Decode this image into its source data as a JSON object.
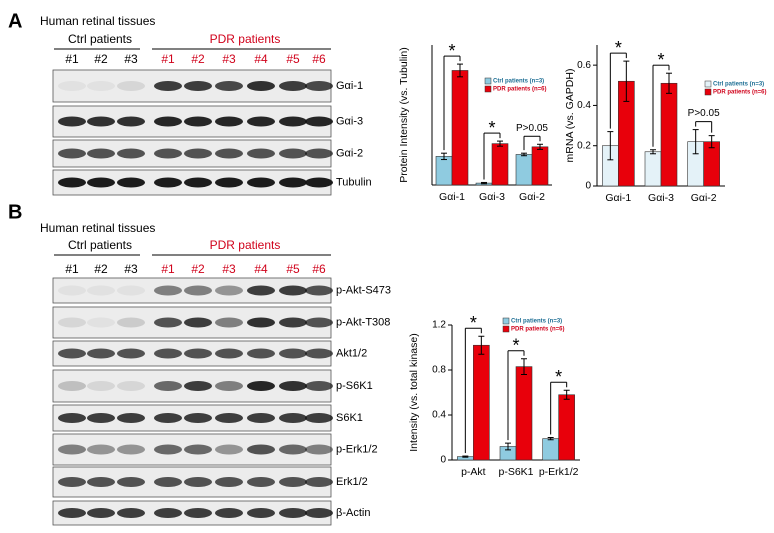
{
  "panel_a": {
    "label": "A",
    "tissue": "Human retinal tissues",
    "groups": [
      "Ctrl patients",
      "PDR patients"
    ],
    "lanes": [
      "#1",
      "#2",
      "#3",
      "#1",
      "#2",
      "#3",
      "#4",
      "#5",
      "#6"
    ],
    "blots": [
      "Gαi-1",
      "Gαi-3",
      "Gαi-2",
      "Tubulin"
    ]
  },
  "panel_b": {
    "label": "B",
    "tissue": "Human retinal tissues",
    "groups": [
      "Ctrl patients",
      "PDR patients"
    ],
    "lanes": [
      "#1",
      "#2",
      "#3",
      "#1",
      "#2",
      "#3",
      "#4",
      "#5",
      "#6"
    ],
    "blots": [
      "p-Akt-S473",
      "p-Akt-T308",
      "Akt1/2",
      "p-S6K1",
      "S6K1",
      "p-Erk1/2",
      "Erk1/2",
      "β-Actin"
    ]
  },
  "chart_data": [
    {
      "type": "bar",
      "ylabel": "Protein Intensity (vs. Tubulin)",
      "categories": [
        "Gαi-1",
        "Gαi-3",
        "Gαi-2"
      ],
      "series": [
        {
          "name": "Ctrl patients (n=3)",
          "color": "#8fcbe0",
          "values": [
            0.45,
            0.03,
            0.48
          ],
          "errors": [
            0.05,
            0.01,
            0.02
          ]
        },
        {
          "name": "PDR patients (n=6)",
          "color": "#e8000b",
          "values": [
            1.8,
            0.65,
            0.6
          ],
          "errors": [
            0.1,
            0.04,
            0.04
          ]
        }
      ],
      "ylim": [
        0,
        2.2
      ],
      "annotations": [
        "*",
        "*",
        "P>0.05"
      ]
    },
    {
      "type": "bar",
      "ylabel": "mRNA (vs. GAPDH)",
      "categories": [
        "Gαi-1",
        "Gαi-3",
        "Gαi-2"
      ],
      "series": [
        {
          "name": "Ctrl patients (n=3)",
          "color": "#e4f2f8",
          "values": [
            0.2,
            0.17,
            0.22
          ],
          "errors": [
            0.07,
            0.01,
            0.06
          ]
        },
        {
          "name": "PDR patients (n=6)",
          "color": "#e8000b",
          "values": [
            0.52,
            0.51,
            0.22
          ],
          "errors": [
            0.1,
            0.05,
            0.03
          ]
        }
      ],
      "ylim": [
        0,
        0.7
      ],
      "yticks": [
        0,
        0.2,
        0.4,
        0.6
      ],
      "annotations": [
        "*",
        "*",
        "P>0.05"
      ]
    },
    {
      "type": "bar",
      "ylabel": "Intensity (vs. total kinase)",
      "categories": [
        "p-Akt",
        "p-S6K1",
        "p-Erk1/2"
      ],
      "series": [
        {
          "name": "Ctrl patients (n=3)",
          "color": "#8fcbe0",
          "values": [
            0.03,
            0.12,
            0.19
          ],
          "errors": [
            0.005,
            0.03,
            0.01
          ]
        },
        {
          "name": "PDR patients (n=6)",
          "color": "#e8000b",
          "values": [
            1.02,
            0.83,
            0.58
          ],
          "errors": [
            0.08,
            0.07,
            0.04
          ]
        }
      ],
      "ylim": [
        0,
        1.2
      ],
      "yticks": [
        0,
        0.4,
        0.8,
        1.2
      ],
      "annotations": [
        "*",
        "*",
        "*"
      ]
    }
  ]
}
